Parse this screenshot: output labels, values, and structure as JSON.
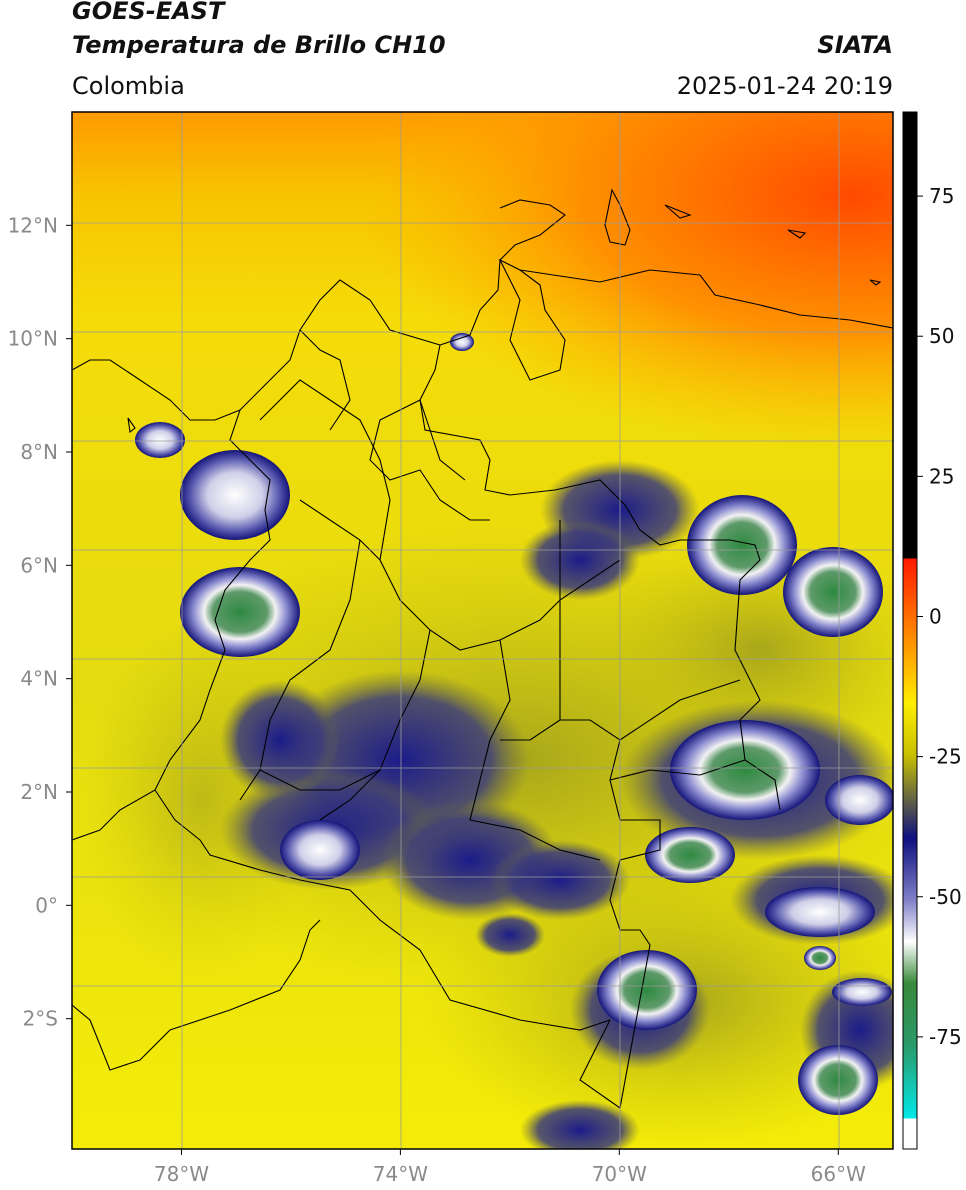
{
  "header": {
    "title_line1": "GOES-EAST",
    "title_line2": "Temperatura de Brillo CH10",
    "brand": "SIATA",
    "region": "Colombia",
    "timestamp": "2025-01-24 20:19"
  },
  "map": {
    "lon_ticks": [
      {
        "value": -78,
        "label": "78°W"
      },
      {
        "value": -74,
        "label": "74°W"
      },
      {
        "value": -70,
        "label": "70°W"
      },
      {
        "value": -66,
        "label": "66°W"
      }
    ],
    "lat_ticks": [
      {
        "value": 12,
        "label": "12°N"
      },
      {
        "value": 10,
        "label": "10°N"
      },
      {
        "value": 8,
        "label": "8°N"
      },
      {
        "value": 6,
        "label": "6°N"
      },
      {
        "value": 4,
        "label": "4°N"
      },
      {
        "value": 2,
        "label": "2°N"
      },
      {
        "value": 0,
        "label": "0°"
      },
      {
        "value": -2,
        "label": "2°S"
      }
    ],
    "lon_range": [
      -80,
      -65
    ],
    "lat_range": [
      -4.3,
      14.0
    ],
    "colors": {
      "warm_background": "#f3e20a",
      "hot_north": "#ff8a00",
      "dry_olive": "#c9c20c",
      "cold_blue": "#1a1a8a",
      "very_cold_white": "#f2f2f2",
      "coldest_green": "#3a8a4a",
      "grid": "#9a9a9a"
    }
  },
  "colorbar": {
    "ticks": [
      {
        "value": 75,
        "label": "75"
      },
      {
        "value": 50,
        "label": "50"
      },
      {
        "value": 25,
        "label": "25"
      },
      {
        "value": 0,
        "label": "0"
      },
      {
        "value": -25,
        "label": "-25"
      },
      {
        "value": -50,
        "label": "-50"
      },
      {
        "value": -75,
        "label": "-75"
      }
    ],
    "range": [
      -95,
      90
    ]
  }
}
